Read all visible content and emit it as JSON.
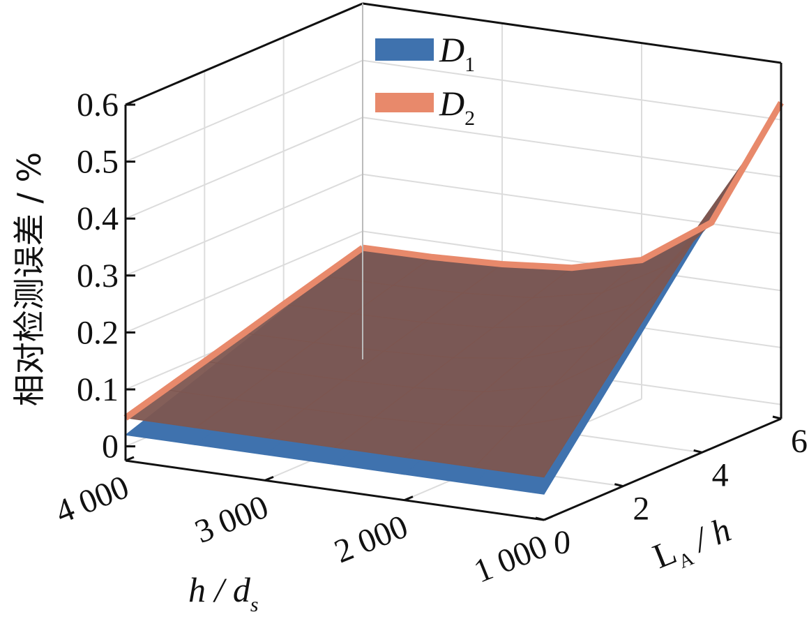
{
  "chart_data": {
    "type": "surface",
    "title": "",
    "zlabel": "相对检测误差 / %",
    "xlabel": "h / d",
    "xlabel_sub": "s",
    "ylabel": "L",
    "ylabel_sub": "A",
    "ylabel_suffix": " / h",
    "x_ticks": [
      "1 000",
      "2 000",
      "3 000",
      "4 000"
    ],
    "y_ticks": [
      "0",
      "2",
      "4",
      "6"
    ],
    "z_ticks": [
      "0",
      "0.1",
      "0.2",
      "0.3",
      "0.4",
      "0.5",
      "0.6"
    ],
    "xlim": [
      1000,
      4000
    ],
    "ylim": [
      0,
      6
    ],
    "zlim": [
      -0.025,
      0.6
    ],
    "grid": true,
    "legend_position": "top-center",
    "x": [
      1000,
      1500,
      2000,
      2500,
      3000,
      3500,
      4000
    ],
    "y": [
      0,
      1,
      2,
      3,
      4,
      5,
      6
    ],
    "series": [
      {
        "name": "D",
        "sub": "1",
        "color": "#3f72ae",
        "z": [
          [
            0.02,
            0.105,
            0.19,
            0.275,
            0.36,
            0.445,
            0.53
          ],
          [
            0.02,
            0.067,
            0.114,
            0.161,
            0.208,
            0.255,
            0.302
          ],
          [
            0.02,
            0.053,
            0.086,
            0.12,
            0.153,
            0.186,
            0.219
          ],
          [
            0.02,
            0.048,
            0.076,
            0.104,
            0.132,
            0.16,
            0.188
          ],
          [
            0.02,
            0.046,
            0.072,
            0.098,
            0.124,
            0.151,
            0.177
          ],
          [
            0.02,
            0.045,
            0.071,
            0.096,
            0.122,
            0.147,
            0.172
          ],
          [
            0.02,
            0.045,
            0.07,
            0.095,
            0.121,
            0.146,
            0.171
          ]
        ]
      },
      {
        "name": "D",
        "sub": "2",
        "color": "#e8896b",
        "z": [
          [
            0.05,
            0.13,
            0.21,
            0.29,
            0.37,
            0.45,
            0.53
          ],
          [
            0.05,
            0.092,
            0.134,
            0.176,
            0.218,
            0.26,
            0.302
          ],
          [
            0.05,
            0.078,
            0.106,
            0.135,
            0.163,
            0.191,
            0.219
          ],
          [
            0.05,
            0.073,
            0.096,
            0.119,
            0.142,
            0.165,
            0.188
          ],
          [
            0.05,
            0.071,
            0.092,
            0.113,
            0.134,
            0.156,
            0.177
          ],
          [
            0.05,
            0.07,
            0.091,
            0.111,
            0.132,
            0.152,
            0.172
          ],
          [
            0.05,
            0.07,
            0.09,
            0.11,
            0.131,
            0.151,
            0.171
          ]
        ]
      }
    ]
  }
}
